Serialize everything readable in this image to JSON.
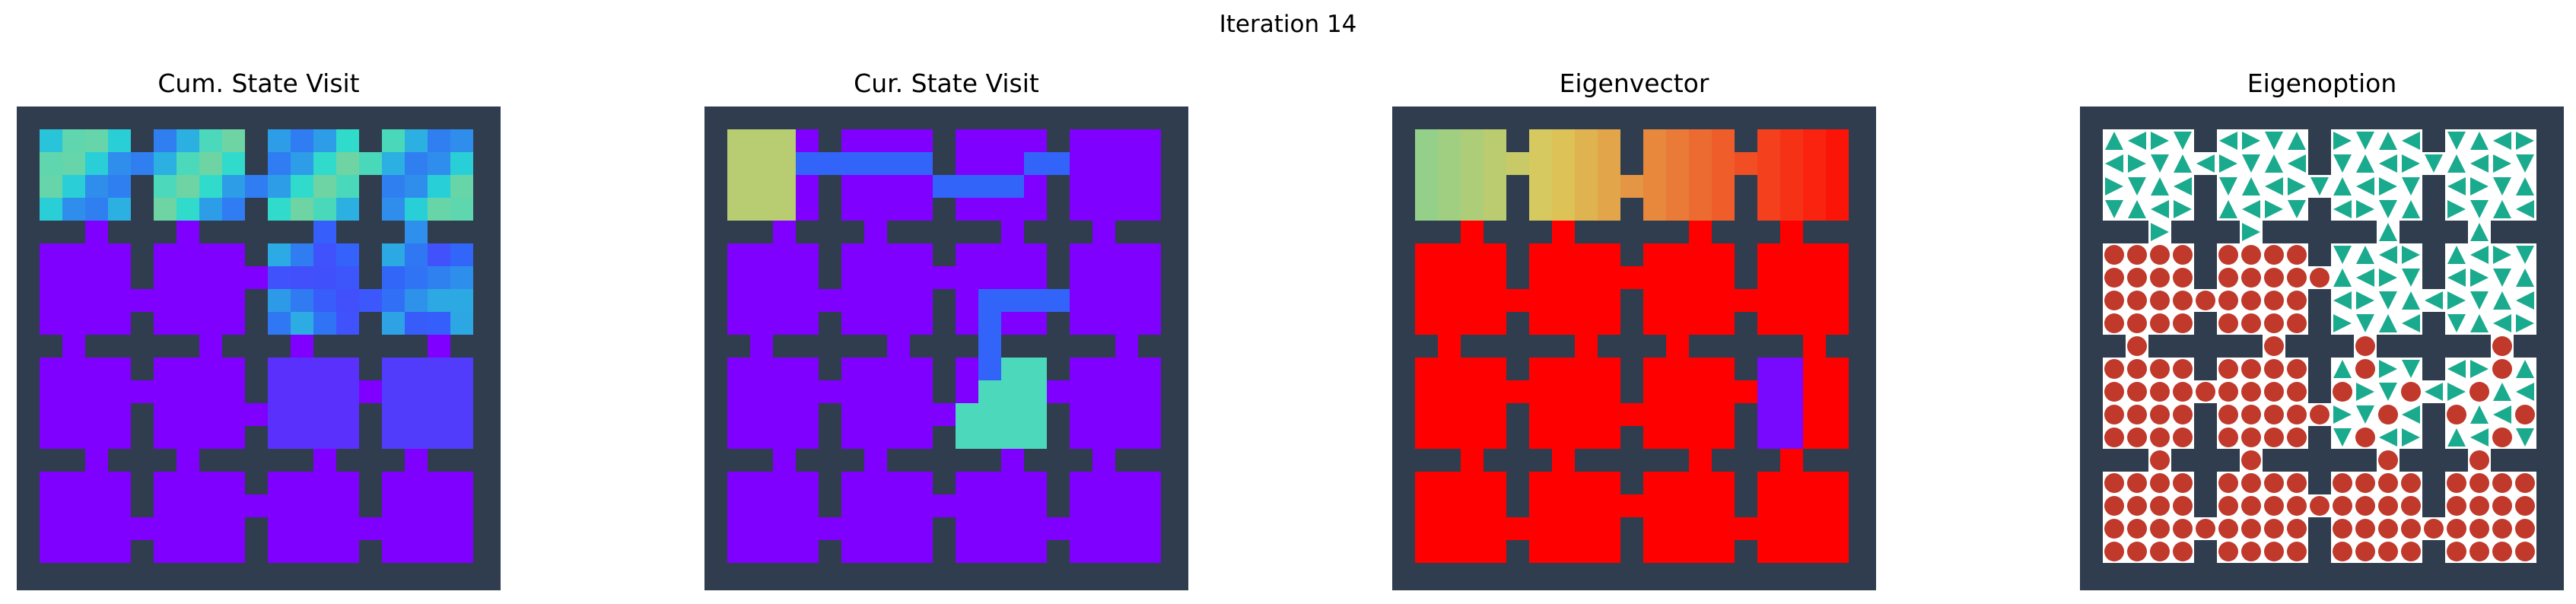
{
  "figure": {
    "title": "Iteration 14",
    "panels": [
      {
        "title": "Cum. State Visit"
      },
      {
        "title": "Cur. State Visit"
      },
      {
        "title": "Eigenvector"
      },
      {
        "title": "Eigenoption"
      }
    ]
  },
  "colors": {
    "wall": "#2f3d4e",
    "low": "#7f00ff",
    "teal": "#1aaa8d",
    "red_marker": "#c0392b",
    "floor": "#ffffff"
  },
  "grid_layout": {
    "rooms": 4,
    "room_cells": 4,
    "description_note": ""
  }
}
